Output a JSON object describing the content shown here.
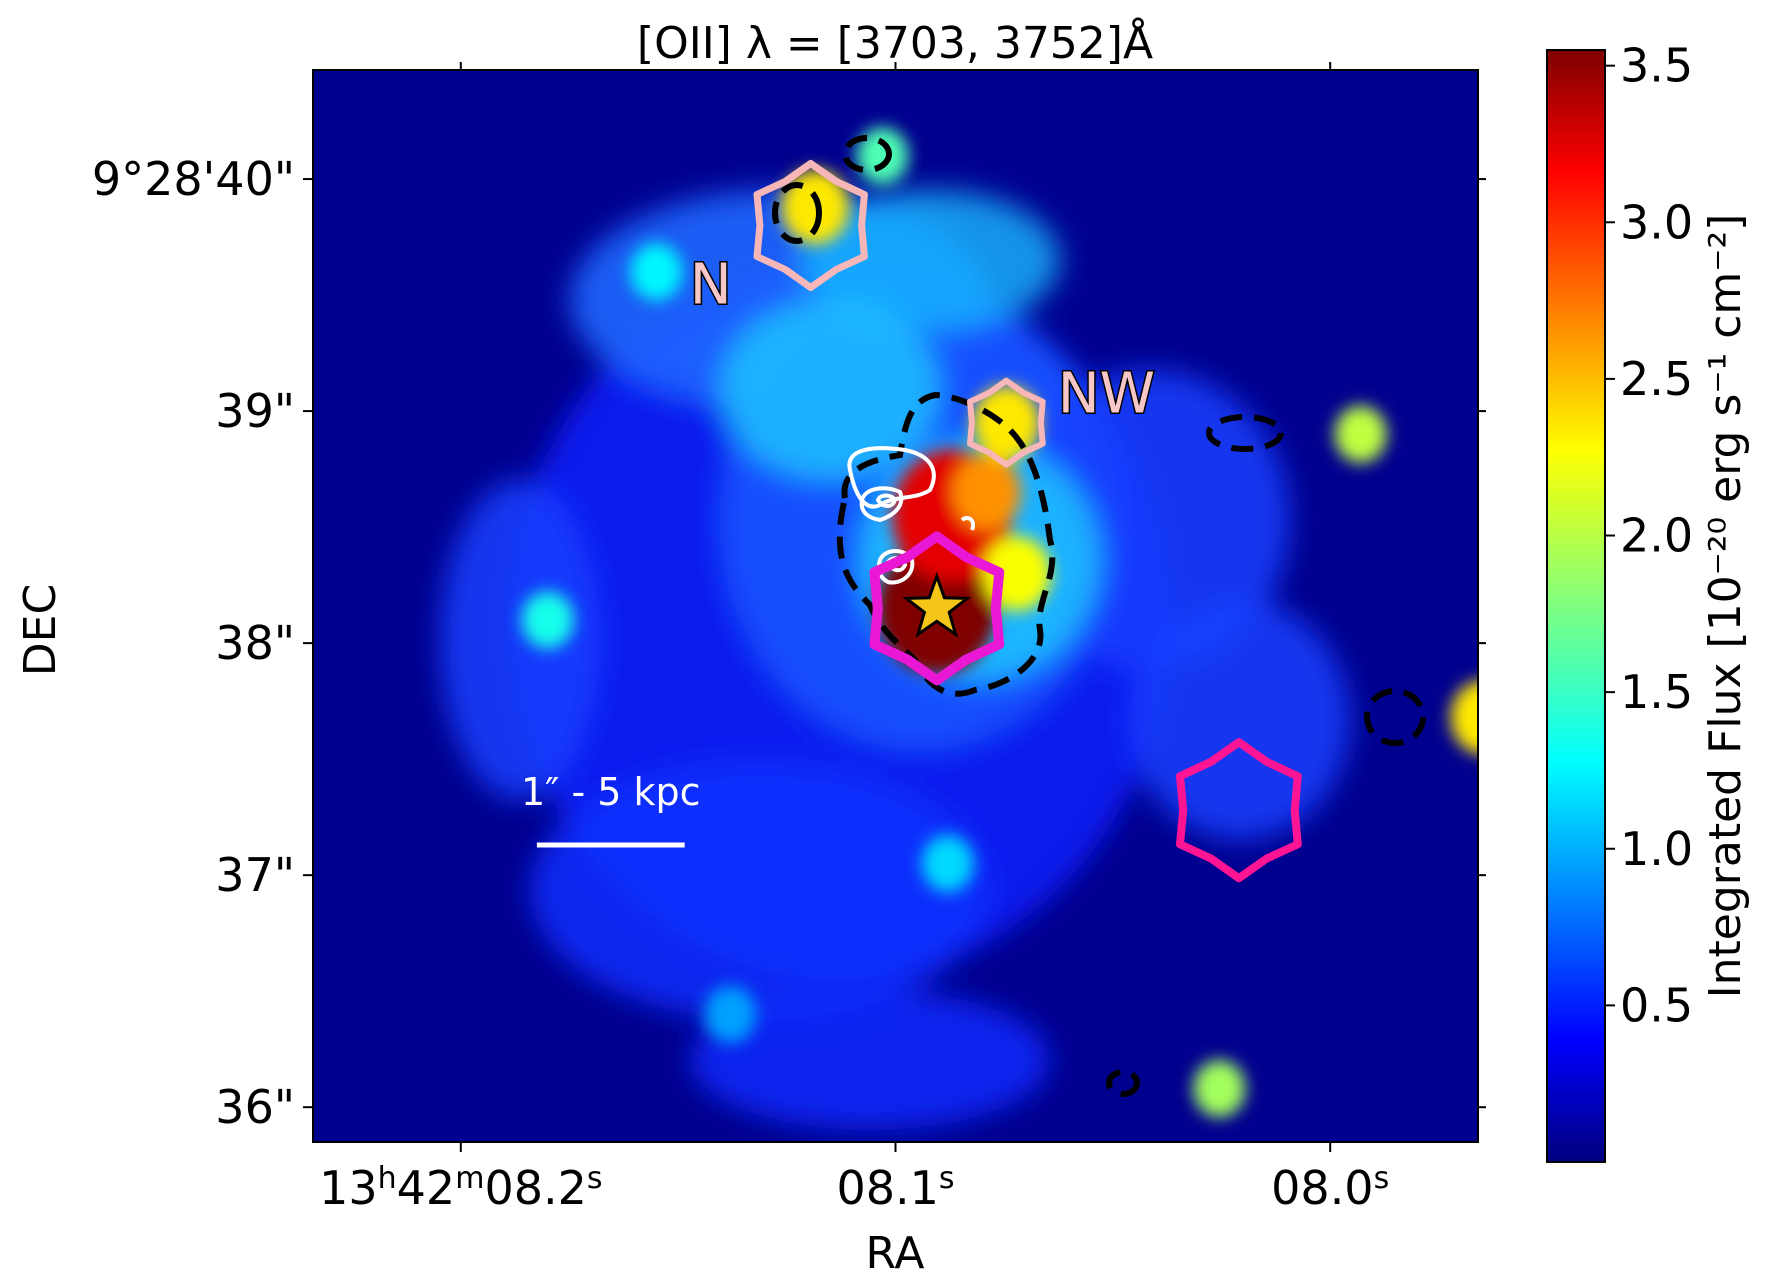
{
  "chart_data": {
    "type": "heatmap",
    "title": "[OII] λ = [3703, 3752]Å",
    "xlabel": "RA",
    "ylabel": "DEC",
    "x_ticks": [
      {
        "main": "13",
        "sup1": "h",
        "mid": "42",
        "sup2": "m",
        "tail": "08.2",
        "sup3": "s"
      },
      {
        "main": "08.1",
        "sup1": "s"
      },
      {
        "main": "08.0",
        "sup1": "s"
      }
    ],
    "x_tick_values": [
      8.2,
      8.1,
      8.0
    ],
    "y_ticks": [
      "9°28'40\"",
      "39\"",
      "38\"",
      "37\"",
      "36\""
    ],
    "y_tick_values": [
      40,
      39,
      38,
      37,
      36
    ],
    "xlim": [
      8.234,
      7.966
    ],
    "ylim": [
      35.85,
      40.47
    ],
    "colorbar": {
      "label": "Integrated Flux [10⁻²⁰ erg s⁻¹ cm⁻²]",
      "ticks": [
        "0.5",
        "1.0",
        "1.5",
        "2.0",
        "2.5",
        "3.0",
        "3.5"
      ],
      "tick_values": [
        0.5,
        1.0,
        1.5,
        2.0,
        2.5,
        3.0,
        3.5
      ],
      "range": [
        0.0,
        3.55
      ],
      "colormap": "jet"
    },
    "emission_peaks": [
      {
        "ra": 8.0905,
        "dec": 38.15,
        "flux": 3.6
      },
      {
        "ra": 8.087,
        "dec": 38.55,
        "flux": 3.2
      },
      {
        "ra": 8.079,
        "dec": 38.65,
        "flux": 2.6
      },
      {
        "ra": 8.072,
        "dec": 38.3,
        "flux": 2.2
      },
      {
        "ra": 8.0745,
        "dec": 38.95,
        "flux": 2.3
      },
      {
        "ra": 8.1185,
        "dec": 39.88,
        "flux": 2.3
      },
      {
        "ra": 8.103,
        "dec": 40.1,
        "flux": 1.6
      },
      {
        "ra": 7.993,
        "dec": 38.9,
        "flux": 2.0
      },
      {
        "ra": 7.9645,
        "dec": 37.68,
        "flux": 2.3
      },
      {
        "ra": 8.0255,
        "dec": 36.08,
        "flux": 1.9
      },
      {
        "ra": 8.18,
        "dec": 38.1,
        "flux": 1.4
      },
      {
        "ra": 8.155,
        "dec": 39.6,
        "flux": 1.3
      },
      {
        "ra": 8.088,
        "dec": 37.05,
        "flux": 1.2
      },
      {
        "ra": 8.138,
        "dec": 36.4,
        "flux": 1.0
      }
    ],
    "regions": [
      {
        "name": "N",
        "label": "N",
        "ra": 8.1195,
        "dec": 39.8,
        "color": "#f7b7b9"
      },
      {
        "name": "NW",
        "label": "NW",
        "ra": 8.0745,
        "dec": 38.95,
        "color": "#f7b7b9"
      },
      {
        "name": "center",
        "label": "",
        "ra": 8.0905,
        "dec": 38.15,
        "color": "#ea18d4"
      },
      {
        "name": "SW",
        "label": "",
        "ra": 8.021,
        "dec": 37.28,
        "color": "#ff1493"
      }
    ],
    "marker": {
      "type": "star",
      "ra": 8.0905,
      "dec": 38.15,
      "color": "#f5c518"
    },
    "scale_bar": {
      "label": "1″ - 5 kpc",
      "ra_start": 8.1825,
      "ra_end": 8.1485,
      "dec": 37.13
    }
  }
}
